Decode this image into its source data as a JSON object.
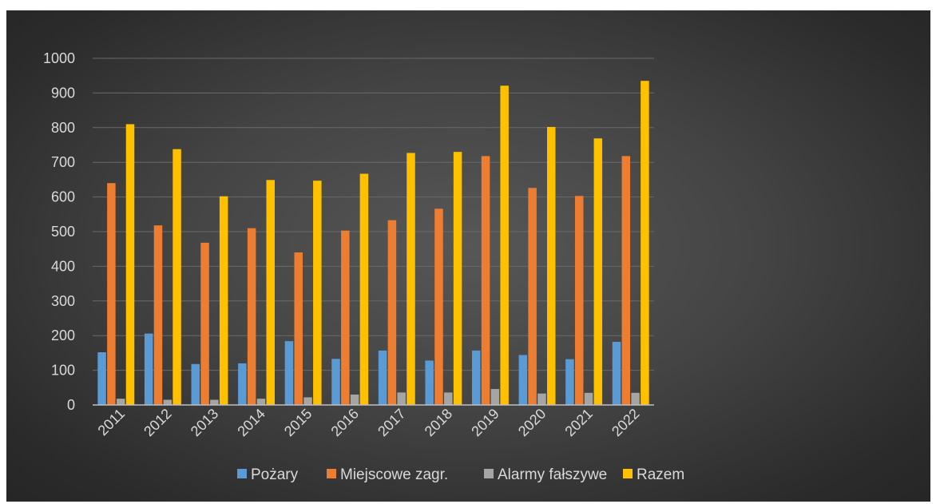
{
  "chart_data": {
    "type": "bar",
    "categories": [
      "2011",
      "2012",
      "2013",
      "2014",
      "2015",
      "2016",
      "2017",
      "2018",
      "2019",
      "2020",
      "2021",
      "2022"
    ],
    "series": [
      {
        "name": "Pożary",
        "color": "#5b9bd5",
        "values": [
          152,
          206,
          118,
          120,
          184,
          133,
          157,
          128,
          157,
          144,
          132,
          182
        ]
      },
      {
        "name": "Miejscowe zagr.",
        "color": "#ed7d31",
        "values": [
          640,
          518,
          468,
          510,
          440,
          503,
          533,
          566,
          718,
          626,
          603,
          718
        ]
      },
      {
        "name": "Alarmy fałszywe",
        "color": "#a5a5a5",
        "values": [
          18,
          15,
          15,
          18,
          22,
          30,
          36,
          36,
          46,
          33,
          35,
          35
        ]
      },
      {
        "name": "Razem",
        "color": "#ffc000",
        "values": [
          810,
          738,
          602,
          649,
          647,
          667,
          727,
          730,
          921,
          802,
          769,
          935
        ]
      }
    ],
    "ylim": [
      0,
      1000
    ],
    "yticks": [
      0,
      100,
      200,
      300,
      400,
      500,
      600,
      700,
      800,
      900,
      1000
    ],
    "grid": true,
    "legend_position": "bottom",
    "title": "",
    "xlabel": "",
    "ylabel": ""
  }
}
